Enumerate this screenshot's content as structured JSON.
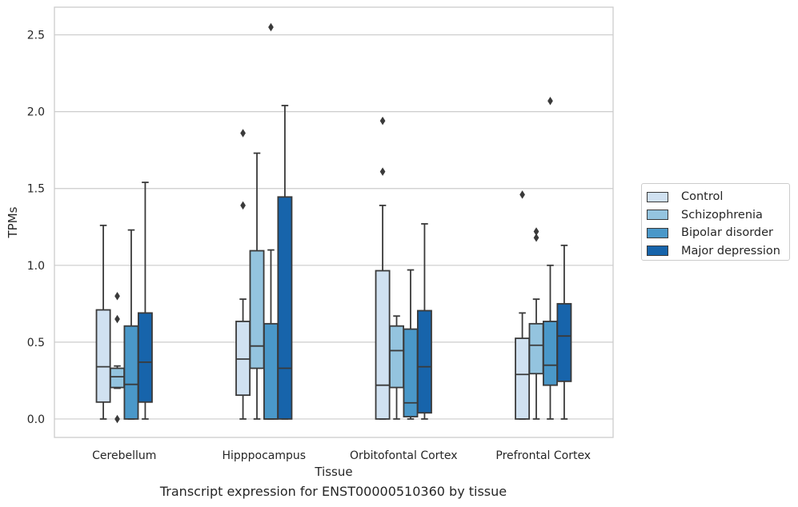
{
  "caption": "Transcript expression for ENST00000510360 by tissue",
  "chart_data": {
    "type": "boxplot",
    "xlabel": "Tissue",
    "ylabel": "TPMs",
    "ylim": [
      -0.12,
      2.68
    ],
    "yticks": [
      "0.0",
      "0.5",
      "1.0",
      "1.5",
      "2.0",
      "2.5"
    ],
    "ytick_values": [
      0,
      0.5,
      1.0,
      1.5,
      2.0,
      2.5
    ],
    "grid": true,
    "legend_position": "right",
    "categories": [
      "Cerebellum",
      "Hipppocampus",
      "Orbitofontal Cortex",
      "Prefrontal Cortex"
    ],
    "series": [
      {
        "name": "Control",
        "color": "#d0e1f1",
        "boxes": [
          {
            "whislo": 0.0,
            "q1": 0.11,
            "med": 0.34,
            "q3": 0.71,
            "whishi": 1.26,
            "fliers": []
          },
          {
            "whislo": 0.0,
            "q1": 0.155,
            "med": 0.39,
            "q3": 0.635,
            "whishi": 0.78,
            "fliers": [
              1.39,
              1.86
            ]
          },
          {
            "whislo": 0.0,
            "q1": 0.0,
            "med": 0.22,
            "q3": 0.965,
            "whishi": 1.39,
            "fliers": [
              1.61,
              1.94
            ]
          },
          {
            "whislo": 0.0,
            "q1": 0.0,
            "med": 0.29,
            "q3": 0.525,
            "whishi": 0.69,
            "fliers": [
              1.46
            ]
          }
        ]
      },
      {
        "name": "Schizophrenia",
        "color": "#94c4df",
        "boxes": [
          {
            "whislo": 0.2,
            "q1": 0.205,
            "med": 0.275,
            "q3": 0.33,
            "whishi": 0.345,
            "fliers": [
              0.0,
              0.65,
              0.8
            ]
          },
          {
            "whislo": 0.0,
            "q1": 0.33,
            "med": 0.475,
            "q3": 1.095,
            "whishi": 1.73,
            "fliers": []
          },
          {
            "whislo": 0.0,
            "q1": 0.205,
            "med": 0.445,
            "q3": 0.605,
            "whishi": 0.67,
            "fliers": []
          },
          {
            "whislo": 0.0,
            "q1": 0.295,
            "med": 0.48,
            "q3": 0.62,
            "whishi": 0.78,
            "fliers": [
              1.18,
              1.22
            ]
          }
        ]
      },
      {
        "name": "Bipolar disorder",
        "color": "#4a98c9",
        "boxes": [
          {
            "whislo": 0.0,
            "q1": 0.0,
            "med": 0.225,
            "q3": 0.605,
            "whishi": 1.23,
            "fliers": []
          },
          {
            "whislo": 0.0,
            "q1": 0.0,
            "med": 0.0,
            "q3": 0.62,
            "whishi": 1.1,
            "fliers": [
              2.55
            ]
          },
          {
            "whislo": 0.0,
            "q1": 0.015,
            "med": 0.105,
            "q3": 0.585,
            "whishi": 0.97,
            "fliers": []
          },
          {
            "whislo": 0.0,
            "q1": 0.22,
            "med": 0.35,
            "q3": 0.635,
            "whishi": 1.0,
            "fliers": [
              2.07
            ]
          }
        ]
      },
      {
        "name": "Major depression",
        "color": "#1764ab",
        "boxes": [
          {
            "whislo": 0.0,
            "q1": 0.11,
            "med": 0.37,
            "q3": 0.69,
            "whishi": 1.54,
            "fliers": []
          },
          {
            "whislo": 0.0,
            "q1": 0.0,
            "med": 0.33,
            "q3": 1.445,
            "whishi": 2.04,
            "fliers": []
          },
          {
            "whislo": 0.0,
            "q1": 0.04,
            "med": 0.34,
            "q3": 0.705,
            "whishi": 1.27,
            "fliers": []
          },
          {
            "whislo": 0.0,
            "q1": 0.245,
            "med": 0.54,
            "q3": 0.75,
            "whishi": 1.13,
            "fliers": []
          }
        ]
      }
    ]
  }
}
